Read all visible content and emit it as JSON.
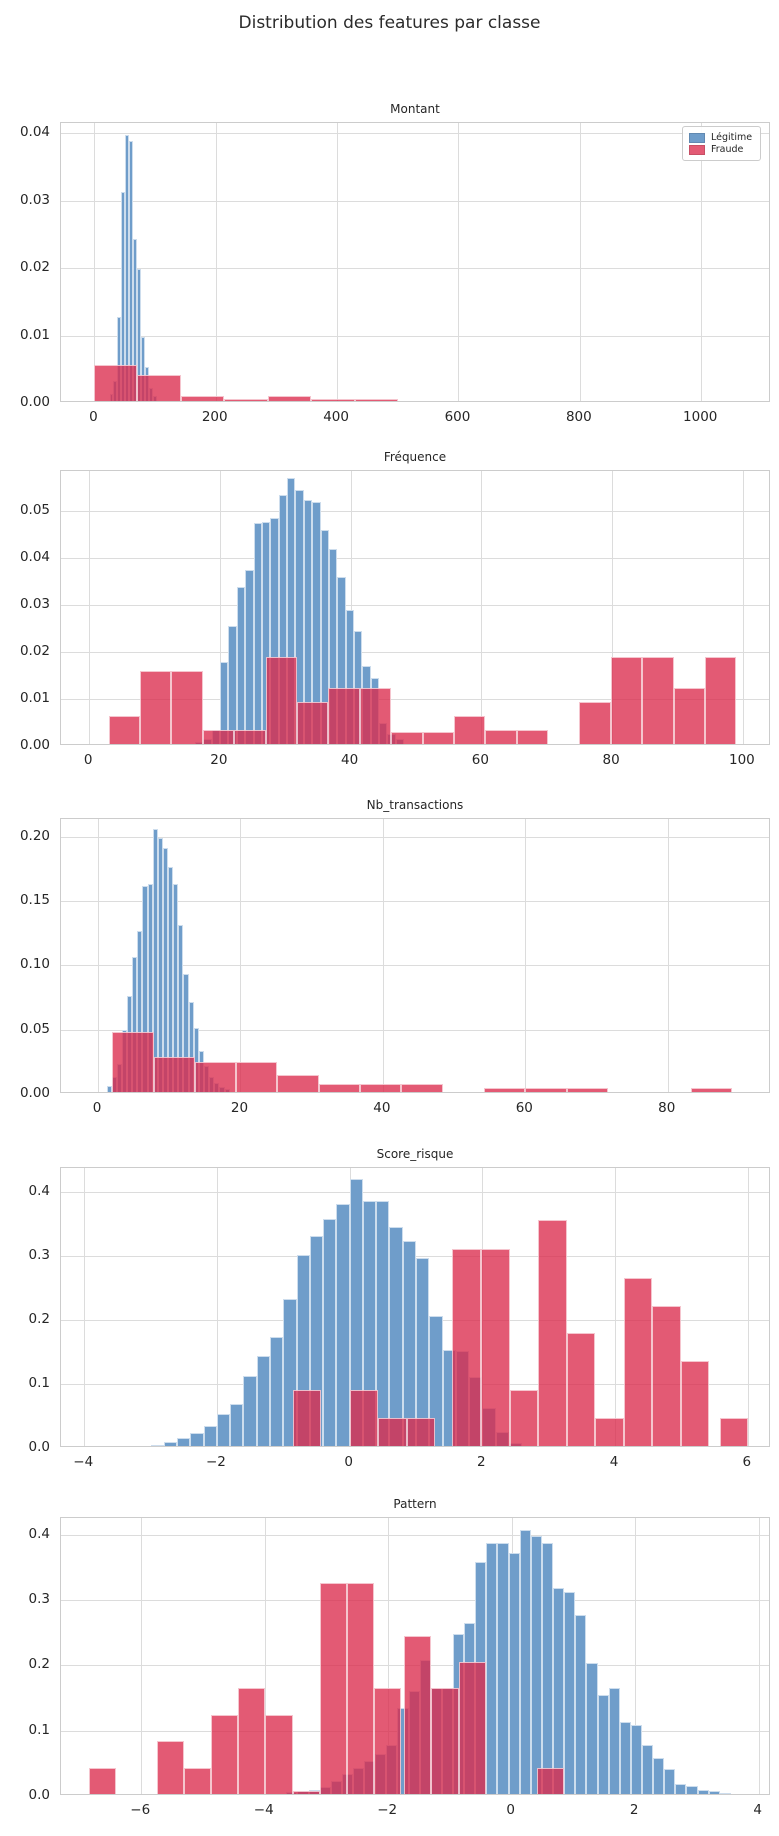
{
  "figure": {
    "title": "Distribution des features par classe"
  },
  "legend": {
    "items": [
      {
        "label": "Légitime",
        "color": "#6f9dca"
      },
      {
        "label": "Fraude",
        "color": "rgba(219,44,77,0.78)"
      }
    ]
  },
  "colors": {
    "legitime": "#6f9dca",
    "fraude": "#db2c4d",
    "grid": "#dcdcdc",
    "spine": "#cccccc",
    "text": "#262626"
  },
  "chart_data": [
    {
      "type": "bar",
      "title": "Montant",
      "xlim": [
        -55,
        1115
      ],
      "ylim": [
        0,
        0.0415
      ],
      "xticks": [
        0,
        200,
        400,
        600,
        800,
        1000
      ],
      "xtick_labels": [
        "0",
        "200",
        "400",
        "600",
        "800",
        "1000"
      ],
      "yticks": [
        0,
        0.01,
        0.02,
        0.03,
        0.04
      ],
      "ytick_labels": [
        "0.00",
        "0.01",
        "0.02",
        "0.03",
        "0.04"
      ],
      "series": [
        {
          "name": "Légitime",
          "color": "blue",
          "start": 25,
          "binw": 6.5,
          "heights": [
            0.001,
            0.003,
            0.0125,
            0.031,
            0.0395,
            0.0385,
            0.024,
            0.0195,
            0.0095,
            0.005,
            0.002,
            0.0008
          ]
        },
        {
          "name": "Fraude",
          "color": "red",
          "bins": [
            [
              0,
              71,
              0.0053
            ],
            [
              71,
              143,
              0.0038
            ],
            [
              143,
              214,
              0.0007
            ],
            [
              214,
              286,
              0.0003
            ],
            [
              286,
              357,
              0.0007
            ],
            [
              357,
              429,
              0.0003
            ],
            [
              429,
              500,
              0.0003
            ]
          ]
        }
      ]
    },
    {
      "type": "bar",
      "title": "Fréquence",
      "xlim": [
        -4.3,
        104.3
      ],
      "ylim": [
        0,
        0.0585
      ],
      "xticks": [
        0,
        20,
        40,
        60,
        80,
        100
      ],
      "xtick_labels": [
        "0",
        "20",
        "40",
        "60",
        "80",
        "100"
      ],
      "yticks": [
        0,
        0.01,
        0.02,
        0.03,
        0.04,
        0.05
      ],
      "ytick_labels": [
        "0.00",
        "0.01",
        "0.02",
        "0.03",
        "0.04",
        "0.05"
      ],
      "series": [
        {
          "name": "Légitime",
          "color": "blue",
          "start": 16.2,
          "binw": 1.28,
          "heights": [
            0.0005,
            0.0011,
            0.003,
            0.0175,
            0.025,
            0.0333,
            0.037,
            0.047,
            0.0473,
            0.048,
            0.053,
            0.0565,
            0.054,
            0.052,
            0.0515,
            0.0455,
            0.0415,
            0.0355,
            0.0285,
            0.024,
            0.0165,
            0.014,
            0.0045,
            0.0022,
            0.001
          ]
        },
        {
          "name": "Fraude",
          "color": "red",
          "start": 3,
          "binw": 4.8,
          "heights": [
            0.006,
            0.0155,
            0.0155,
            0.003,
            0.003,
            0.0185,
            0.009,
            0.012,
            0.012,
            0.0025,
            0.0025,
            0.006,
            0.003,
            0.003,
            0,
            0.009,
            0.0185,
            0.0185,
            0.012,
            0.0185
          ]
        }
      ]
    },
    {
      "type": "bar",
      "title": "Nb_transactions",
      "xlim": [
        -5.2,
        94.5
      ],
      "ylim": [
        0,
        0.214
      ],
      "xticks": [
        0,
        20,
        40,
        60,
        80
      ],
      "xtick_labels": [
        "0",
        "20",
        "40",
        "60",
        "80"
      ],
      "yticks": [
        0,
        0.05,
        0.1,
        0.15,
        0.2
      ],
      "ytick_labels": [
        "0.00",
        "0.05",
        "0.10",
        "0.15",
        "0.20"
      ],
      "series": [
        {
          "name": "Légitime",
          "color": "blue",
          "start": 1.2,
          "binw": 0.72,
          "heights": [
            0.005,
            0.012,
            0.022,
            0.048,
            0.075,
            0.105,
            0.125,
            0.16,
            0.162,
            0.205,
            0.198,
            0.19,
            0.175,
            0.162,
            0.13,
            0.092,
            0.07,
            0.05,
            0.032,
            0.02,
            0.012,
            0.007,
            0.004,
            0.002
          ]
        },
        {
          "name": "Fraude",
          "color": "red",
          "start": 2,
          "binw": 5.8,
          "heights": [
            0.047,
            0.027,
            0.023,
            0.023,
            0.013,
            0.006,
            0.006,
            0.006,
            0,
            0.003,
            0.003,
            0.003,
            0,
            0,
            0.003
          ]
        }
      ]
    },
    {
      "type": "bar",
      "title": "Score_risque",
      "xlim": [
        -4.35,
        6.35
      ],
      "ylim": [
        0,
        0.437
      ],
      "xticks": [
        -4,
        -2,
        0,
        2,
        4,
        6
      ],
      "xtick_labels": [
        "−4",
        "−2",
        "0",
        "2",
        "4",
        "6"
      ],
      "yticks": [
        0,
        0.1,
        0.2,
        0.3,
        0.4
      ],
      "ytick_labels": [
        "0.0",
        "0.1",
        "0.2",
        "0.3",
        "0.4"
      ],
      "series": [
        {
          "name": "Légitime",
          "color": "blue",
          "start": -3.0,
          "binw": 0.2,
          "heights": [
            0.002,
            0.007,
            0.013,
            0.02,
            0.032,
            0.05,
            0.065,
            0.11,
            0.14,
            0.17,
            0.23,
            0.298,
            0.327,
            0.355,
            0.378,
            0.417,
            0.383,
            0.383,
            0.342,
            0.32,
            0.294,
            0.203,
            0.15,
            0.148,
            0.108,
            0.06,
            0.022,
            0.005
          ]
        },
        {
          "name": "Fraude",
          "color": "red",
          "bins": [
            [
              -0.86,
              -0.43,
              0.088
            ],
            [
              0.0,
              0.43,
              0.088
            ],
            [
              0.43,
              0.86,
              0.044
            ],
            [
              0.86,
              1.29,
              0.044
            ],
            [
              1.55,
              1.98,
              0.308
            ],
            [
              1.98,
              2.41,
              0.308
            ],
            [
              2.41,
              2.84,
              0.088
            ],
            [
              2.84,
              3.27,
              0.352
            ],
            [
              3.27,
              3.7,
              0.176
            ],
            [
              3.7,
              4.13,
              0.044
            ],
            [
              4.13,
              4.56,
              0.263
            ],
            [
              4.56,
              4.99,
              0.218
            ],
            [
              4.99,
              5.42,
              0.132
            ],
            [
              5.58,
              6.01,
              0.044
            ]
          ]
        }
      ]
    },
    {
      "type": "bar",
      "title": "Pattern",
      "xlim": [
        -7.3,
        4.2
      ],
      "ylim": [
        0,
        0.426
      ],
      "xticks": [
        -6,
        -4,
        -2,
        0,
        2,
        4
      ],
      "xtick_labels": [
        "−6",
        "−4",
        "−2",
        "0",
        "2",
        "4"
      ],
      "yticks": [
        0,
        0.1,
        0.2,
        0.3,
        0.4
      ],
      "ytick_labels": [
        "0.0",
        "0.1",
        "0.2",
        "0.3",
        "0.4"
      ],
      "series": [
        {
          "name": "Légitime",
          "color": "blue",
          "start": -3.65,
          "binw": 0.18,
          "heights": [
            0.003,
            0.004,
            0.006,
            0.01,
            0.02,
            0.03,
            0.04,
            0.05,
            0.062,
            0.075,
            0.132,
            0.158,
            0.205,
            0.162,
            0.162,
            0.245,
            0.262,
            0.355,
            0.385,
            0.385,
            0.37,
            0.405,
            0.395,
            0.385,
            0.315,
            0.31,
            0.275,
            0.2,
            0.152,
            0.163,
            0.11,
            0.105,
            0.075,
            0.055,
            0.038,
            0.015,
            0.012,
            0.006,
            0.004,
            0.002
          ]
        },
        {
          "name": "Fraude",
          "color": "red",
          "bins": [
            [
              -6.85,
              -6.41,
              0.04
            ],
            [
              -5.75,
              -5.31,
              0.081
            ],
            [
              -5.31,
              -4.87,
              0.04
            ],
            [
              -4.87,
              -4.43,
              0.121
            ],
            [
              -4.43,
              -3.99,
              0.162
            ],
            [
              -3.99,
              -3.55,
              0.121
            ],
            [
              -3.55,
              -3.11,
              0.004
            ],
            [
              -3.11,
              -2.67,
              0.323
            ],
            [
              -2.67,
              -2.23,
              0.323
            ],
            [
              -2.23,
              -1.79,
              0.162
            ],
            [
              -1.74,
              -1.3,
              0.242
            ],
            [
              -1.3,
              -0.86,
              0.162
            ],
            [
              -0.86,
              -0.42,
              0.203
            ],
            [
              0.41,
              0.85,
              0.04
            ]
          ]
        }
      ]
    }
  ]
}
